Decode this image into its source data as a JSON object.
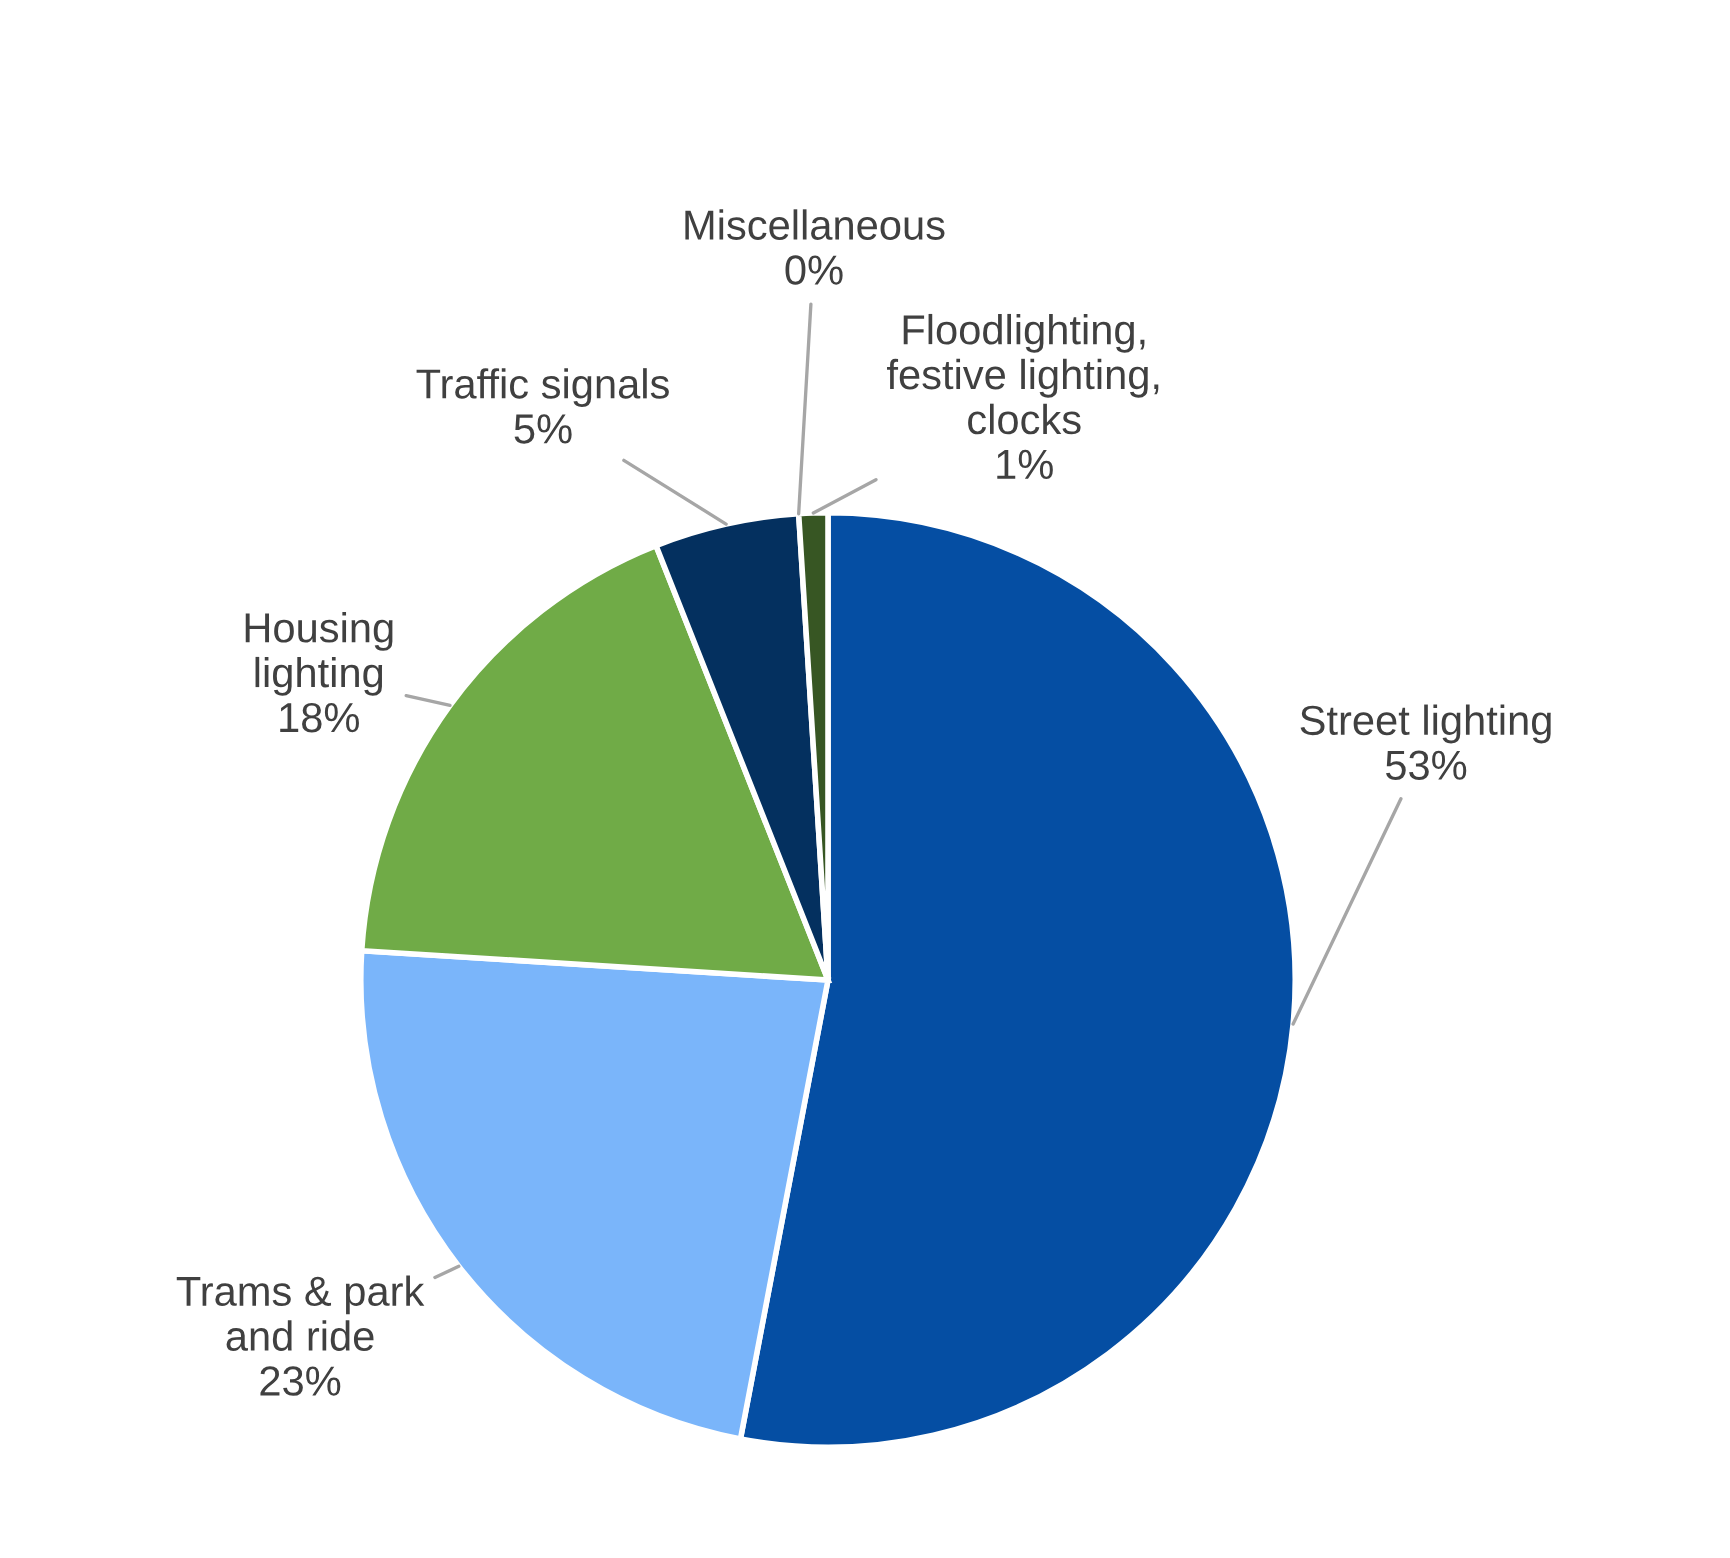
{
  "chart_data": {
    "type": "pie",
    "categories": [
      "Street lighting",
      "Trams & park\nand ride",
      "Housing\nlighting",
      "Traffic signals",
      "Miscellaneous",
      "Floodlighting,\nfestive lighting,\nclocks"
    ],
    "values": [
      53,
      23,
      18,
      5,
      0,
      1
    ],
    "value_labels": [
      "53%",
      "23%",
      "18%",
      "5%",
      "0%",
      "1%"
    ],
    "colors": [
      "#054ea3",
      "#7ab5fa",
      "#70ab47",
      "#04305f",
      "#e8eef6",
      "#375623"
    ],
    "legend": false
  }
}
